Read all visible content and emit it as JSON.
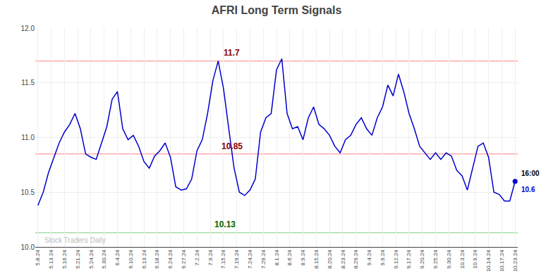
{
  "chart_data": {
    "type": "line",
    "title": "AFRI Long Term Signals",
    "series": [
      {
        "name": "AFRI",
        "color": "#0000cc",
        "values": [
          10.38,
          10.5,
          10.68,
          10.82,
          10.95,
          11.05,
          11.12,
          11.22,
          11.08,
          10.85,
          10.82,
          10.8,
          10.95,
          11.1,
          11.35,
          11.42,
          11.08,
          10.98,
          11.02,
          10.92,
          10.78,
          10.72,
          10.83,
          10.88,
          10.95,
          10.82,
          10.55,
          10.52,
          10.53,
          10.62,
          10.88,
          10.98,
          11.22,
          11.52,
          11.7,
          11.45,
          11.08,
          10.72,
          10.5,
          10.47,
          10.52,
          10.62,
          11.05,
          11.18,
          11.22,
          11.62,
          11.72,
          11.22,
          11.08,
          11.1,
          10.98,
          11.18,
          11.28,
          11.12,
          11.08,
          11.02,
          10.92,
          10.86,
          10.98,
          11.02,
          11.12,
          11.18,
          11.08,
          11.02,
          11.18,
          11.28,
          11.48,
          11.38,
          11.58,
          11.42,
          11.22,
          11.08,
          10.92,
          10.86,
          10.8,
          10.86,
          10.8,
          10.86,
          10.83,
          10.7,
          10.65,
          10.52,
          10.72,
          10.92,
          10.95,
          10.82,
          10.5,
          10.48,
          10.42,
          10.42,
          10.6
        ]
      }
    ],
    "xlim": [
      -0.5,
      90.5
    ],
    "xticks": [
      {
        "value": 0,
        "label": "5.8.24"
      },
      {
        "value": 2.5,
        "label": "5.13.24"
      },
      {
        "value": 5,
        "label": "5.16.24"
      },
      {
        "value": 7.5,
        "label": "5.21.24"
      },
      {
        "value": 10,
        "label": "5.24.24"
      },
      {
        "value": 12.5,
        "label": "5.30.24"
      },
      {
        "value": 15,
        "label": "6.4.24"
      },
      {
        "value": 17.5,
        "label": "6.10.24"
      },
      {
        "value": 20,
        "label": "6.13.24"
      },
      {
        "value": 22.5,
        "label": "6.18.24"
      },
      {
        "value": 25,
        "label": "6.24.24"
      },
      {
        "value": 27.5,
        "label": "6.27.24"
      },
      {
        "value": 30,
        "label": "7.2.24"
      },
      {
        "value": 32.5,
        "label": "7.9.24"
      },
      {
        "value": 35,
        "label": "7.15.24"
      },
      {
        "value": 37.5,
        "label": "7.19.24"
      },
      {
        "value": 40,
        "label": "7.24.24"
      },
      {
        "value": 42.5,
        "label": "7.29.24"
      },
      {
        "value": 45,
        "label": "8.1.24"
      },
      {
        "value": 47.5,
        "label": "8.6.24"
      },
      {
        "value": 50,
        "label": "8.9.24"
      },
      {
        "value": 52.5,
        "label": "8.15.24"
      },
      {
        "value": 55,
        "label": "8.20.24"
      },
      {
        "value": 57.5,
        "label": "8.23.24"
      },
      {
        "value": 60,
        "label": "8.29.24"
      },
      {
        "value": 62.5,
        "label": "9.4.24"
      },
      {
        "value": 65,
        "label": "9.9.24"
      },
      {
        "value": 67.5,
        "label": "9.12.24"
      },
      {
        "value": 70,
        "label": "9.17.24"
      },
      {
        "value": 72.5,
        "label": "9.20.24"
      },
      {
        "value": 75,
        "label": "9.25.24"
      },
      {
        "value": 77.5,
        "label": "9.30.24"
      },
      {
        "value": 80,
        "label": "10.3.24"
      },
      {
        "value": 82.5,
        "label": "10.9.24"
      },
      {
        "value": 85,
        "label": "10.14.24"
      },
      {
        "value": 87.5,
        "label": "10.17.24"
      },
      {
        "value": 90,
        "label": "10.23.24"
      }
    ],
    "ylim": [
      10.0,
      12.0
    ],
    "yticks": [
      {
        "value": 10.0,
        "label": "10.0"
      },
      10.5,
      {
        "value": 11.0,
        "label": "11.0"
      },
      11.5,
      {
        "value": 12.0,
        "label": "12.0"
      }
    ],
    "hlines": [
      {
        "y": 11.7,
        "color": "#ffaaaa"
      },
      {
        "y": 10.85,
        "color": "#ffaaaa"
      },
      {
        "y": 10.13,
        "color": "#aaddaa"
      }
    ],
    "annotations": [
      {
        "text": "11.7",
        "x": 34,
        "y": 11.7,
        "color": "darkred"
      },
      {
        "text": "10.85",
        "x": 36,
        "y": 10.85,
        "color": "darkred"
      },
      {
        "text": "10.13",
        "x": 33,
        "y": 10.13,
        "color": "darkgreen"
      },
      {
        "text": "16:00",
        "x": 90,
        "y": 10.6,
        "color": "black"
      },
      {
        "text": "10.6",
        "x": 90,
        "y": 10.6,
        "color": "#0000cc"
      },
      {
        "text": "Stock Traders Daily",
        "x": 1,
        "y": 10.015,
        "color": "#bbbbbb"
      }
    ],
    "grid": true
  }
}
